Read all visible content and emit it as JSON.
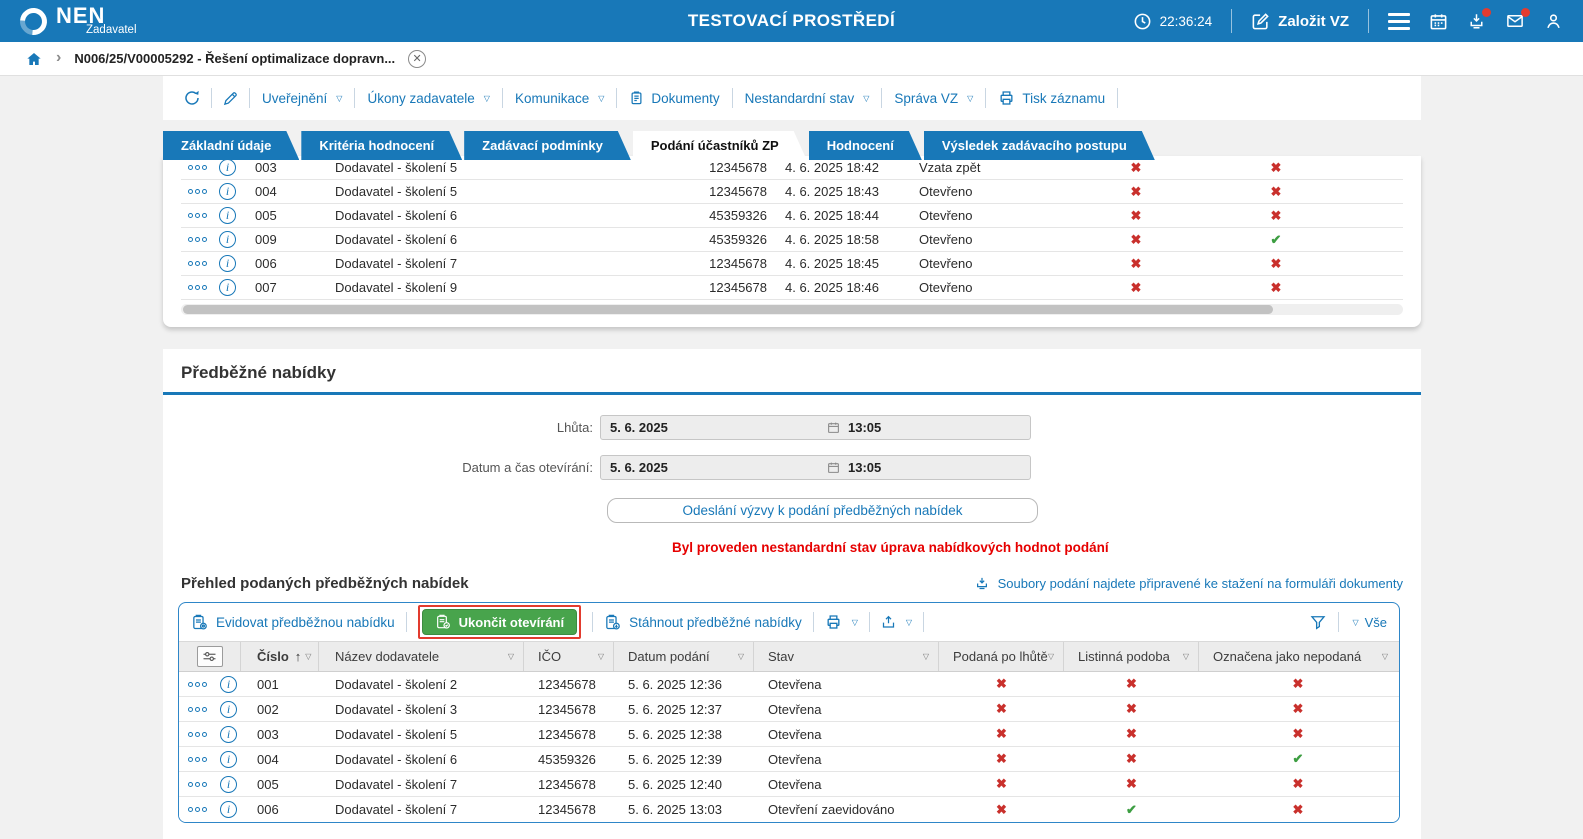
{
  "header": {
    "logo_text": "NEN",
    "logo_subtitle": "Zadavatel",
    "environment_title": "TESTOVACÍ PROSTŘEDÍ",
    "time": "22:36:24",
    "create_vz_label": "Založit VZ"
  },
  "breadcrumb": {
    "record": "N006/25/V00005292 - Řešení optimalizace dopravn..."
  },
  "record_toolbar": {
    "uverejneni": "Uveřejnění",
    "ukony_zadavatele": "Úkony zadavatele",
    "komunikace": "Komunikace",
    "dokumenty": "Dokumenty",
    "nestandardni_stav": "Nestandardní stav",
    "sprava_vz": "Správa VZ",
    "tisk_zaznamu": "Tisk záznamu"
  },
  "tabs": [
    {
      "label": "Základní údaje",
      "active": false
    },
    {
      "label": "Kritéria hodnocení",
      "active": false
    },
    {
      "label": "Zadávací podmínky",
      "active": false
    },
    {
      "label": "Podání účastníků ZP",
      "active": true
    },
    {
      "label": "Hodnocení",
      "active": false
    },
    {
      "label": "Výsledek zadávacího postupu",
      "active": false
    }
  ],
  "submissions_table": {
    "rows": [
      {
        "number": "003",
        "supplier": "Dodavatel - školení 5",
        "ico": "12345678",
        "date": "4. 6. 2025 18:42",
        "status": "Vzata zpět",
        "flag1": "x",
        "flag2": "x"
      },
      {
        "number": "004",
        "supplier": "Dodavatel - školení 5",
        "ico": "12345678",
        "date": "4. 6. 2025 18:43",
        "status": "Otevřeno",
        "flag1": "x",
        "flag2": "x"
      },
      {
        "number": "005",
        "supplier": "Dodavatel - školení 6",
        "ico": "45359326",
        "date": "4. 6. 2025 18:44",
        "status": "Otevřeno",
        "flag1": "x",
        "flag2": "x"
      },
      {
        "number": "009",
        "supplier": "Dodavatel - školení 6",
        "ico": "45359326",
        "date": "4. 6. 2025 18:58",
        "status": "Otevřeno",
        "flag1": "x",
        "flag2": "check"
      },
      {
        "number": "006",
        "supplier": "Dodavatel - školení 7",
        "ico": "12345678",
        "date": "4. 6. 2025 18:45",
        "status": "Otevřeno",
        "flag1": "x",
        "flag2": "x"
      },
      {
        "number": "007",
        "supplier": "Dodavatel - školení 9",
        "ico": "12345678",
        "date": "4. 6. 2025 18:46",
        "status": "Otevřeno",
        "flag1": "x",
        "flag2": "x"
      }
    ]
  },
  "preliminary_offers": {
    "heading": "Předběžné nabídky",
    "deadline_label": "Lhůta:",
    "deadline_date": "5. 6. 2025",
    "deadline_time": "13:05",
    "opening_label": "Datum a čas otevírání:",
    "opening_date": "5. 6. 2025",
    "opening_time": "13:05",
    "send_invitation_button": "Odeslání výzvy k podání předběžných nabídek",
    "warning": "Byl proveden nestandardní stav úprava nabídkových hodnot podání"
  },
  "submitted_overview": {
    "heading": "Přehled podaných předběžných nabídek",
    "files_link": "Soubory podání najdete připravené ke stažení na formuláři dokumenty",
    "toolbar": {
      "evidovat": "Evidovat předběžnou nabídku",
      "ukoncit": "Ukončit otevírání",
      "stahnout": "Stáhnout předběžné nabídky",
      "vse": "Vše"
    },
    "table": {
      "headers": {
        "cislo": "Číslo",
        "nazev": "Název dodavatele",
        "ico": "IČO",
        "datum": "Datum podání",
        "stav": "Stav",
        "podana": "Podaná po lhůtě",
        "listinna": "Listinná podoba",
        "oznacena": "Označena jako nepodaná"
      },
      "rows": [
        {
          "number": "001",
          "supplier": "Dodavatel - školení 2",
          "ico": "12345678",
          "date": "5. 6. 2025 12:36",
          "status": "Otevřena",
          "late": "x",
          "paper": "x",
          "not_submitted": "x"
        },
        {
          "number": "002",
          "supplier": "Dodavatel - školení 3",
          "ico": "12345678",
          "date": "5. 6. 2025 12:37",
          "status": "Otevřena",
          "late": "x",
          "paper": "x",
          "not_submitted": "x"
        },
        {
          "number": "003",
          "supplier": "Dodavatel - školení 5",
          "ico": "12345678",
          "date": "5. 6. 2025 12:38",
          "status": "Otevřena",
          "late": "x",
          "paper": "x",
          "not_submitted": "x"
        },
        {
          "number": "004",
          "supplier": "Dodavatel - školení 6",
          "ico": "45359326",
          "date": "5. 6. 2025 12:39",
          "status": "Otevřena",
          "late": "x",
          "paper": "x",
          "not_submitted": "check"
        },
        {
          "number": "005",
          "supplier": "Dodavatel - školení 7",
          "ico": "12345678",
          "date": "5. 6. 2025 12:40",
          "status": "Otevřena",
          "late": "x",
          "paper": "x",
          "not_submitted": "x"
        },
        {
          "number": "006",
          "supplier": "Dodavatel - školení 7",
          "ico": "12345678",
          "date": "5. 6. 2025 13:03",
          "status": "Otevření zaevidováno",
          "late": "x",
          "paper": "check",
          "not_submitted": "x"
        }
      ]
    }
  },
  "colors": {
    "accent_blue": "#1878b8",
    "button_green": "#48a44c",
    "mark_red": "#c9302c",
    "mark_green": "#3d9e42",
    "annotation_red": "#e23b2e",
    "warning_red": "#e60000"
  }
}
